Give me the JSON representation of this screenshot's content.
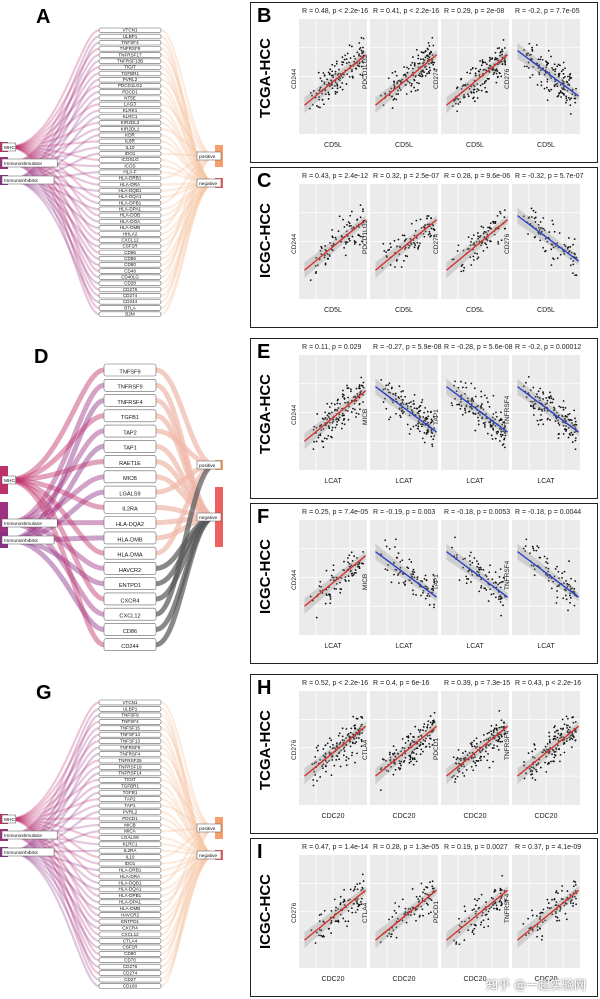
{
  "sections": [
    {
      "letter": "A",
      "sankey_letter_pos": "top",
      "sources": [
        "MHC",
        "Immunostimulator",
        "Immunoinhibitor"
      ],
      "targets": [
        "positive",
        "negative"
      ],
      "genes": [
        "VTCN1",
        "ULBP1",
        "TNFSF4",
        "TNFRSF9",
        "TNFRSF17",
        "TNFRSF13B",
        "TIGIT",
        "TGFBR1",
        "PVRL2",
        "PDCD1LG2",
        "PDCD1",
        "NT5E",
        "LAG3",
        "KLRK1",
        "KLRC1",
        "KIR2DL3",
        "KIR2DL1",
        "KDR",
        "IL6R",
        "IL10",
        "IDO1",
        "ICOSLG",
        "ICOS",
        "HLA-F",
        "HLA-DRB1",
        "HLA-DRA",
        "HLA-DQB1",
        "HLA-DQA1",
        "HLA-DPB1",
        "HLA-DPA1",
        "HLA-DOB",
        "HLA-DOA",
        "HLA-DMB",
        "HHLA2",
        "CXCL12",
        "CSF1R",
        "CD96",
        "CD86",
        "CD80",
        "CD48",
        "CD40LG",
        "CD28",
        "CD276",
        "CD274",
        "CD244",
        "BTLA",
        "B2M"
      ],
      "panels": [
        {
          "letter": "B",
          "cohort": "TCGA-HCC",
          "x": "CD5L",
          "plots": [
            {
              "y": "CD244",
              "stat": "R = 0.48, p < 2.2e-16",
              "dir": "pos"
            },
            {
              "y": "PDCD1LG2",
              "stat": "R = 0.41, p < 2.2e-16",
              "dir": "pos"
            },
            {
              "y": "CD274",
              "stat": "R = 0.29, p = 2e-08",
              "dir": "pos"
            },
            {
              "y": "CD276",
              "stat": "R = -0.2, p = 7.7e-05",
              "dir": "neg"
            }
          ]
        },
        {
          "letter": "C",
          "cohort": "ICGC-HCC",
          "x": "CD5L",
          "plots": [
            {
              "y": "CD244",
              "stat": "R = 0.43, p = 2.4e-12",
              "dir": "pos"
            },
            {
              "y": "PDCD1LG2",
              "stat": "R = 0.32, p = 2.5e-07",
              "dir": "pos"
            },
            {
              "y": "CD274",
              "stat": "R = 0.28, p = 9.6e-06",
              "dir": "pos"
            },
            {
              "y": "CD276",
              "stat": "R = -0.32, p = 5.7e-07",
              "dir": "neg"
            }
          ]
        }
      ]
    },
    {
      "letter": "D",
      "sources": [
        "MHC",
        "Immunostimulator",
        "Immunoinhibitor"
      ],
      "targets": [
        "positive",
        "negative"
      ],
      "genes": [
        "TNFSF9",
        "TNFRSF9",
        "TNFRSF4",
        "TGFB1",
        "TAP2",
        "TAP1",
        "RAET1E",
        "MICB",
        "LGALS9",
        "IL2RA",
        "HLA-DQA2",
        "HLA-DMB",
        "HLA-DMA",
        "HAVCR2",
        "ENTPD1",
        "CXCR4",
        "CXCL12",
        "CD86",
        "CD244"
      ],
      "panels": [
        {
          "letter": "E",
          "cohort": "TCGA-HCC",
          "x": "LCAT",
          "plots": [
            {
              "y": "CD244",
              "stat": "R = 0.11, p = 0.029",
              "dir": "pos"
            },
            {
              "y": "MICB",
              "stat": "R = -0.27, p = 5.9e-08",
              "dir": "neg"
            },
            {
              "y": "TAP1",
              "stat": "R = -0.28, p = 5.6e-08",
              "dir": "neg"
            },
            {
              "y": "TNFRSF4",
              "stat": "R = -0.2, p = 0.00012",
              "dir": "neg"
            }
          ]
        },
        {
          "letter": "F",
          "cohort": "ICGC-HCC",
          "x": "LCAT",
          "plots": [
            {
              "y": "CD244",
              "stat": "R = 0.25, p = 7.4e-05",
              "dir": "pos"
            },
            {
              "y": "MICB",
              "stat": "R = -0.19, p = 0.003",
              "dir": "neg"
            },
            {
              "y": "TAP1",
              "stat": "R = -0.18, p = 0.0053",
              "dir": "neg"
            },
            {
              "y": "TNFRSF4",
              "stat": "R = -0.18, p = 0.0044",
              "dir": "neg"
            }
          ]
        }
      ]
    },
    {
      "letter": "G",
      "sources": [
        "MHC",
        "Immunostimulator",
        "Immunoinhibitor"
      ],
      "targets": [
        "positive",
        "negative"
      ],
      "genes": [
        "VTCN1",
        "ULBP1",
        "TNFSF9",
        "TNFSF4",
        "TNFSF15",
        "TNFSF14",
        "TNFSF13",
        "TNFRSF9",
        "TNFRSF4",
        "TNFRSF25",
        "TNFRSF18",
        "TNFRSF14",
        "TIGIT",
        "TGFBR1",
        "TGFB1",
        "TAP2",
        "TAP1",
        "PVRL2",
        "PDCD1",
        "MICB",
        "MICA",
        "LGALS9",
        "KLRC1",
        "IL2RA",
        "IL10",
        "IDO1",
        "HLA-DRB1",
        "HLA-DRA",
        "HLA-DQB1",
        "HLA-DQA1",
        "HLA-DPB1",
        "HLA-DPA1",
        "HLA-DMB",
        "HAVCR2",
        "ENTPD1",
        "CXCR4",
        "CXCL12",
        "CTLA4",
        "CSF1R",
        "CD80",
        "CD70",
        "CD276",
        "CD274",
        "CD27",
        "CD160"
      ],
      "panels": [
        {
          "letter": "H",
          "cohort": "TCGA-HCC",
          "x": "CDC20",
          "plots": [
            {
              "y": "CD276",
              "stat": "R = 0.52, p < 2.2e-16",
              "dir": "pos"
            },
            {
              "y": "CTLA4",
              "stat": "R = 0.4, p = 6e-16",
              "dir": "pos"
            },
            {
              "y": "PDCD1",
              "stat": "R = 0.39, p = 7.3e-15",
              "dir": "pos"
            },
            {
              "y": "TNFRSF4",
              "stat": "R = 0.43, p < 2.2e-16",
              "dir": "pos"
            }
          ]
        },
        {
          "letter": "I",
          "cohort": "ICGC-HCC",
          "x": "CDC20",
          "plots": [
            {
              "y": "CD276",
              "stat": "R = 0.47, p = 1.4e-14",
              "dir": "pos"
            },
            {
              "y": "CTLA4",
              "stat": "R = 0.28, p = 1.3e-05",
              "dir": "pos"
            },
            {
              "y": "PDCD1",
              "stat": "R = 0.19, p = 0.0027",
              "dir": "pos"
            },
            {
              "y": "TNFRSF4",
              "stat": "R = 0.37, p = 4.1e-09",
              "dir": "pos"
            }
          ]
        }
      ]
    }
  ],
  "watermark": "知乎 @一起实验网",
  "colors": {
    "pos": "#d9312b",
    "neg": "#2b3fc4",
    "panel_bg": "#ebebeb",
    "ci": "#b0b0b0"
  }
}
